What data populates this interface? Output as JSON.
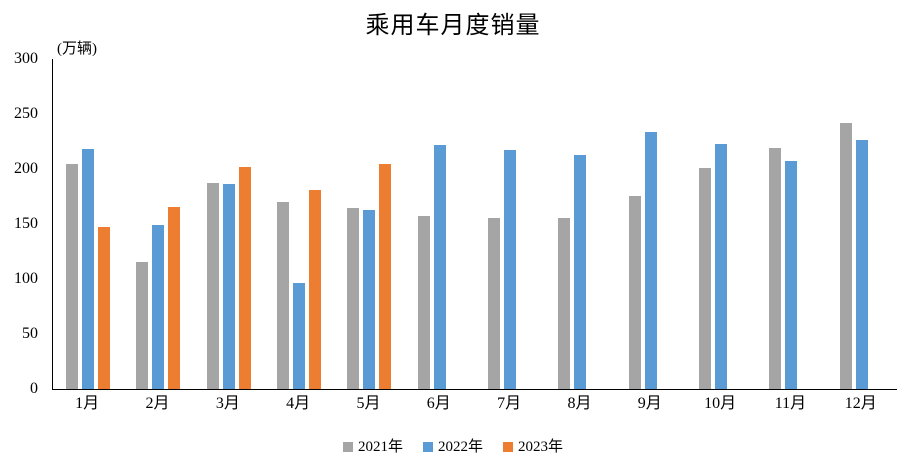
{
  "title": "乘用车月度销量",
  "unit_label": "(万辆)",
  "colors": {
    "series_2021": "#A5A5A5",
    "series_2022": "#5B9BD5",
    "series_2023": "#ED7D31",
    "axis": "#000000",
    "text": "#000000",
    "background": "#FFFFFF"
  },
  "chart_data": {
    "type": "bar",
    "title": "乘用车月度销量",
    "ylabel": "(万辆)",
    "xlabel": "",
    "categories": [
      "1月",
      "2月",
      "3月",
      "4月",
      "5月",
      "6月",
      "7月",
      "8月",
      "9月",
      "10月",
      "11月",
      "12月"
    ],
    "series": [
      {
        "name": "2021年",
        "color": "#A5A5A5",
        "values": [
          204.5,
          115.6,
          187.4,
          170.4,
          164.6,
          156.9,
          155.1,
          155.2,
          175.1,
          200.7,
          219.2,
          242.2
        ]
      },
      {
        "name": "2022年",
        "color": "#5B9BD5",
        "values": [
          218.6,
          148.7,
          186.4,
          96.5,
          162.3,
          222.2,
          217.4,
          212.5,
          233.2,
          223.1,
          207.5,
          226.3
        ]
      },
      {
        "name": "2023年",
        "color": "#ED7D31",
        "values": [
          146.9,
          165.3,
          201.7,
          181.1,
          204.2,
          null,
          null,
          null,
          null,
          null,
          null,
          null
        ]
      }
    ],
    "ylim": [
      0,
      300
    ],
    "yticks": [
      0,
      50,
      100,
      150,
      200,
      250,
      300
    ],
    "grid": false,
    "legend_position": "bottom"
  }
}
